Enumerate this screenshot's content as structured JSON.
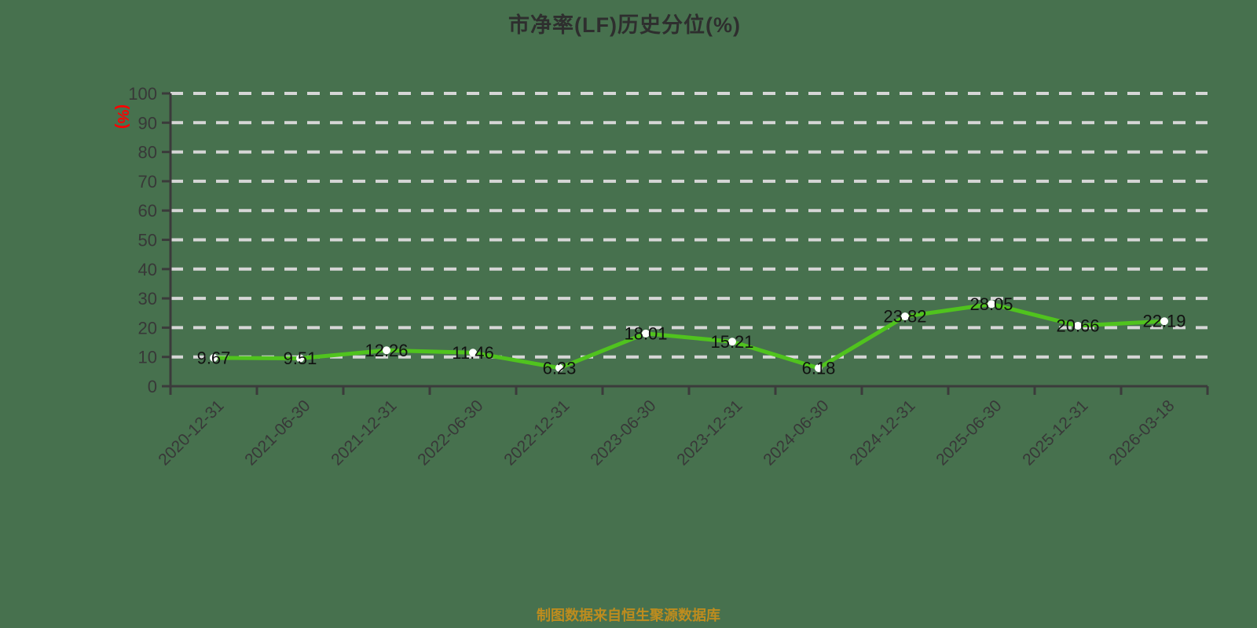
{
  "title": "市净率(LF)历史分位(%)",
  "footer": "制图数据来自恒生聚源数据库",
  "colors": {
    "background": "#47714E",
    "title": "#2E2E2E",
    "footer": "#BE8C1E",
    "grid": "#D6D6D6",
    "axis": "#3B3B3B",
    "tick_label": "#383838",
    "value_label": "#111111",
    "line": "#50C31E",
    "marker": "#FFFFFF",
    "y_unit": "#FF0000"
  },
  "chart_data": {
    "type": "line",
    "title": "市净率(LF)历史分位(%)",
    "x": [
      "2020-12-31",
      "2021-06-30",
      "2021-12-31",
      "2022-06-30",
      "2022-12-31",
      "2023-06-30",
      "2023-12-31",
      "2024-06-30",
      "2024-12-31",
      "2025-06-30",
      "2025-12-31",
      "2026-03-18"
    ],
    "series": [
      {
        "name": "市净率(LF)历史分位",
        "values": [
          9.67,
          9.51,
          12.26,
          11.46,
          6.23,
          18.01,
          15.21,
          6.18,
          23.82,
          28.05,
          20.66,
          22.19
        ]
      }
    ],
    "xlabel": "",
    "ylabel": "(%)",
    "ylim": [
      0,
      100
    ],
    "ytick_step": 10,
    "grid": true,
    "grid_style": "dashed",
    "legend": false,
    "x_tick_rotation": -45,
    "point_labels_visible": true
  }
}
